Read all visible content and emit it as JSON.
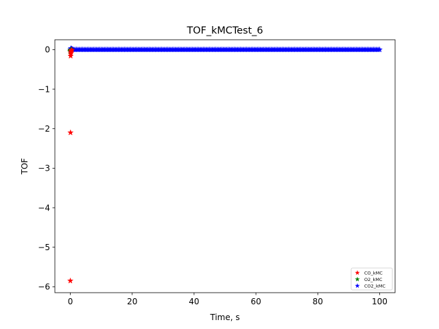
{
  "chart_data": {
    "type": "scatter",
    "title": "TOF_kMCTest_6",
    "xlabel": "Time, s",
    "ylabel": "TOF",
    "xlim": [
      -5,
      105
    ],
    "ylim": [
      -6.15,
      0.25
    ],
    "xticks": [
      0,
      20,
      40,
      60,
      80,
      100
    ],
    "yticks": [
      0,
      -1,
      -2,
      -3,
      -4,
      -5,
      -6
    ],
    "xtick_labels": [
      "0",
      "20",
      "40",
      "60",
      "80",
      "100"
    ],
    "ytick_labels": [
      "0",
      "−1",
      "−2",
      "−3",
      "−4",
      "−5",
      "−6"
    ],
    "grid": false,
    "legend_position": "lower right",
    "marker": "star",
    "series": [
      {
        "name": "CO_kMC",
        "color": "#ff0000",
        "x": [
          0.0,
          0.05,
          0.1,
          0.15,
          0.2,
          0.3,
          0.5
        ],
        "y": [
          -5.85,
          -2.1,
          -0.16,
          -0.1,
          -0.06,
          -0.03,
          -0.01
        ]
      },
      {
        "name": "O2_kMC",
        "color": "#008000",
        "x": [
          0.0,
          0.05,
          0.1,
          0.2,
          0.3
        ],
        "y": [
          -0.05,
          -0.04,
          -0.02,
          -0.01,
          0.0
        ]
      },
      {
        "name": "CO2_kMC",
        "color": "#0000ff",
        "x_range": [
          0,
          100
        ],
        "x_step": 0.5,
        "y_constant": 0.0,
        "extra_points": [
          [
            0.2,
            0.03
          ],
          [
            0.4,
            0.02
          ],
          [
            0.7,
            0.01
          ]
        ]
      }
    ]
  }
}
